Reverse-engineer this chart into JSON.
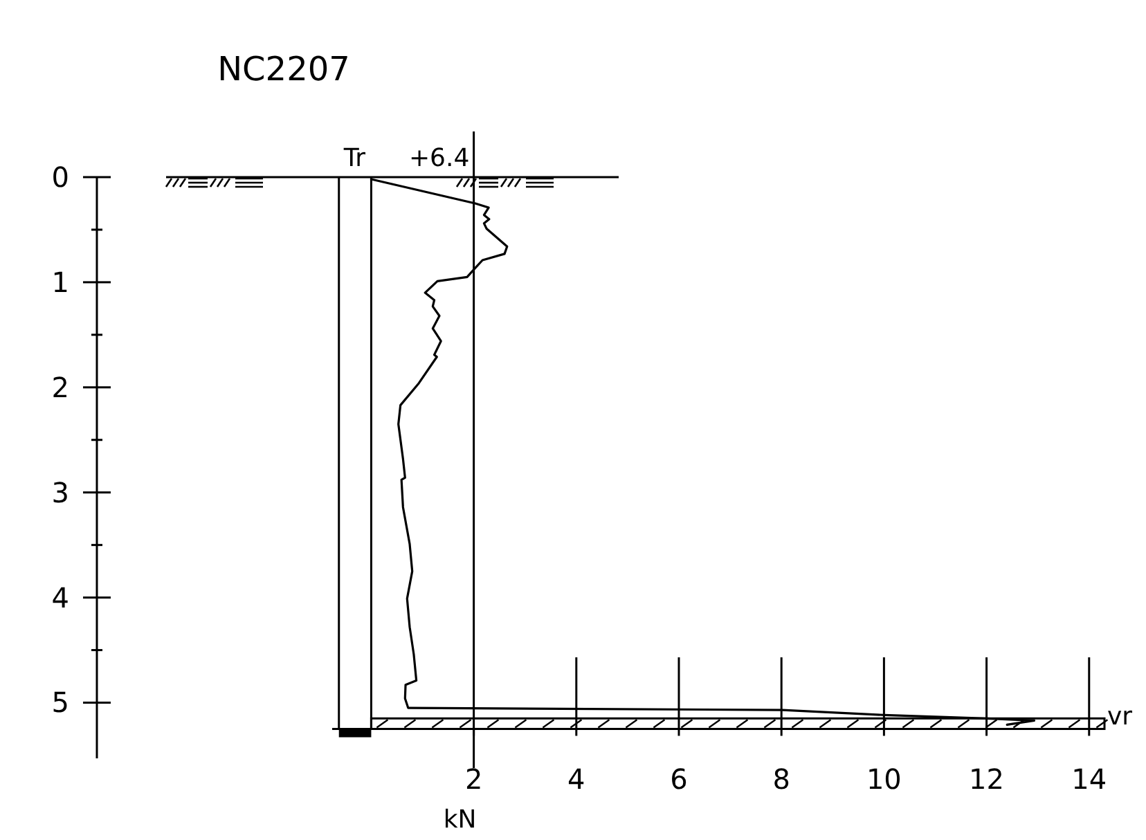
{
  "chart_data": {
    "type": "line",
    "title": "NC2207",
    "xlabel": "kN",
    "annotations": [
      "Tr",
      "+6.4",
      "vr"
    ],
    "x": [
      0,
      2.03,
      2.29,
      2.2,
      2.3,
      2.2,
      2.25,
      2.65,
      2.6,
      2.17,
      2.0,
      1.87,
      1.29,
      1.05,
      1.23,
      1.2,
      1.33,
      1.2,
      1.36,
      1.23,
      1.28,
      0.93,
      0.57,
      0.53,
      0.62,
      0.66,
      0.59,
      0.62,
      0.75,
      0.8,
      0.7,
      0.75,
      0.83,
      0.88,
      0.67,
      0.66,
      0.72,
      0.75,
      8.02,
      10.1,
      12.0,
      12.93,
      12.4
    ],
    "values": [
      0.02,
      0.25,
      0.29,
      0.36,
      0.4,
      0.44,
      0.49,
      0.66,
      0.73,
      0.79,
      0.88,
      0.95,
      0.99,
      1.1,
      1.17,
      1.23,
      1.32,
      1.44,
      1.56,
      1.69,
      1.71,
      1.96,
      2.17,
      2.35,
      2.68,
      2.86,
      2.88,
      3.14,
      3.49,
      3.75,
      4.01,
      4.28,
      4.54,
      4.79,
      4.83,
      4.96,
      5.05,
      5.05,
      5.07,
      5.12,
      5.15,
      5.17,
      5.21
    ],
    "color": "#000000",
    "xlim": [
      -5.35,
      14.3
    ],
    "ylim": [
      5.53,
      0
    ],
    "xticks": [
      2,
      4,
      6,
      8,
      10,
      12,
      14
    ],
    "yticks": [
      0,
      {
        "value": 0.5,
        "label": null
      },
      1,
      {
        "value": 1.5,
        "label": null
      },
      2,
      {
        "value": 2.5,
        "label": null
      },
      3,
      {
        "value": 3.5,
        "label": null
      },
      4,
      {
        "value": 4.5,
        "label": null
      },
      5
    ],
    "ref_lines": [
      {
        "axis": "y",
        "value": 0
      },
      {
        "axis": "x",
        "value": -0.63
      },
      {
        "axis": "x",
        "value": 0
      },
      {
        "axis": "x",
        "value": 2
      }
    ],
    "bands": [
      {
        "axis": "y",
        "from": 5.15,
        "to": 5.25
      }
    ],
    "grid": false,
    "line_style": "solid"
  }
}
